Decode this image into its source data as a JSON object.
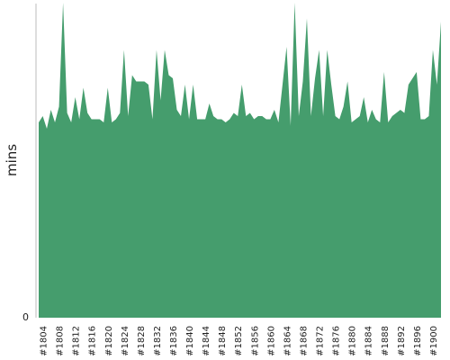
{
  "chart_data": {
    "type": "area",
    "title": "",
    "xlabel": "",
    "ylabel": "mins",
    "area_color": "#459d6d",
    "axis_color": "#bdbdbd",
    "y_ticks": [
      0
    ],
    "ylim": [
      0,
      100
    ],
    "grid": false,
    "legend": "none",
    "x_tick_labels": [
      "#1804",
      "#1808",
      "#1812",
      "#1816",
      "#1820",
      "#1824",
      "#1828",
      "#1832",
      "#1836",
      "#1840",
      "#1844",
      "#1848",
      "#1852",
      "#1856",
      "#1860",
      "#1864",
      "#1868",
      "#1872",
      "#1876",
      "#1880",
      "#1884",
      "#1888",
      "#1892",
      "#1896",
      "#1900"
    ],
    "x": [
      "#1803",
      "#1804",
      "#1805",
      "#1806",
      "#1807",
      "#1808",
      "#1809",
      "#1810",
      "#1811",
      "#1812",
      "#1813",
      "#1814",
      "#1815",
      "#1816",
      "#1817",
      "#1818",
      "#1819",
      "#1820",
      "#1821",
      "#1822",
      "#1823",
      "#1824",
      "#1825",
      "#1826",
      "#1827",
      "#1828",
      "#1829",
      "#1830",
      "#1831",
      "#1832",
      "#1833",
      "#1834",
      "#1835",
      "#1836",
      "#1837",
      "#1838",
      "#1839",
      "#1840",
      "#1841",
      "#1842",
      "#1843",
      "#1844",
      "#1845",
      "#1846",
      "#1847",
      "#1848",
      "#1849",
      "#1850",
      "#1851",
      "#1852",
      "#1853",
      "#1854",
      "#1855",
      "#1856",
      "#1857",
      "#1858",
      "#1859",
      "#1860",
      "#1861",
      "#1862",
      "#1863",
      "#1864",
      "#1865",
      "#1866",
      "#1867",
      "#1868",
      "#1869",
      "#1870",
      "#1871",
      "#1872",
      "#1873",
      "#1874",
      "#1875",
      "#1876",
      "#1877",
      "#1878",
      "#1879",
      "#1880",
      "#1881",
      "#1882",
      "#1883",
      "#1884",
      "#1885",
      "#1886",
      "#1887",
      "#1888",
      "#1889",
      "#1890",
      "#1891",
      "#1892",
      "#1893",
      "#1894",
      "#1895",
      "#1896",
      "#1897",
      "#1898",
      "#1899",
      "#1900",
      "#1901",
      "#1902"
    ],
    "values": [
      62,
      64,
      60,
      66,
      62,
      67,
      100,
      65,
      62,
      70,
      63,
      73,
      65,
      63,
      63,
      63,
      62,
      73,
      62,
      63,
      65,
      85,
      64,
      77,
      75,
      75,
      75,
      74,
      63,
      85,
      69,
      85,
      77,
      76,
      66,
      64,
      74,
      63,
      74,
      63,
      63,
      63,
      68,
      64,
      63,
      63,
      62,
      63,
      65,
      64,
      74,
      64,
      65,
      63,
      64,
      64,
      63,
      63,
      66,
      62,
      74,
      86,
      61,
      100,
      64,
      75,
      95,
      64,
      76,
      85,
      64,
      85,
      74,
      64,
      63,
      67,
      75,
      62,
      63,
      64,
      70,
      62,
      66,
      63,
      62,
      78,
      62,
      64,
      65,
      66,
      65,
      74,
      76,
      78,
      63,
      63,
      64,
      85,
      74,
      94
    ]
  }
}
